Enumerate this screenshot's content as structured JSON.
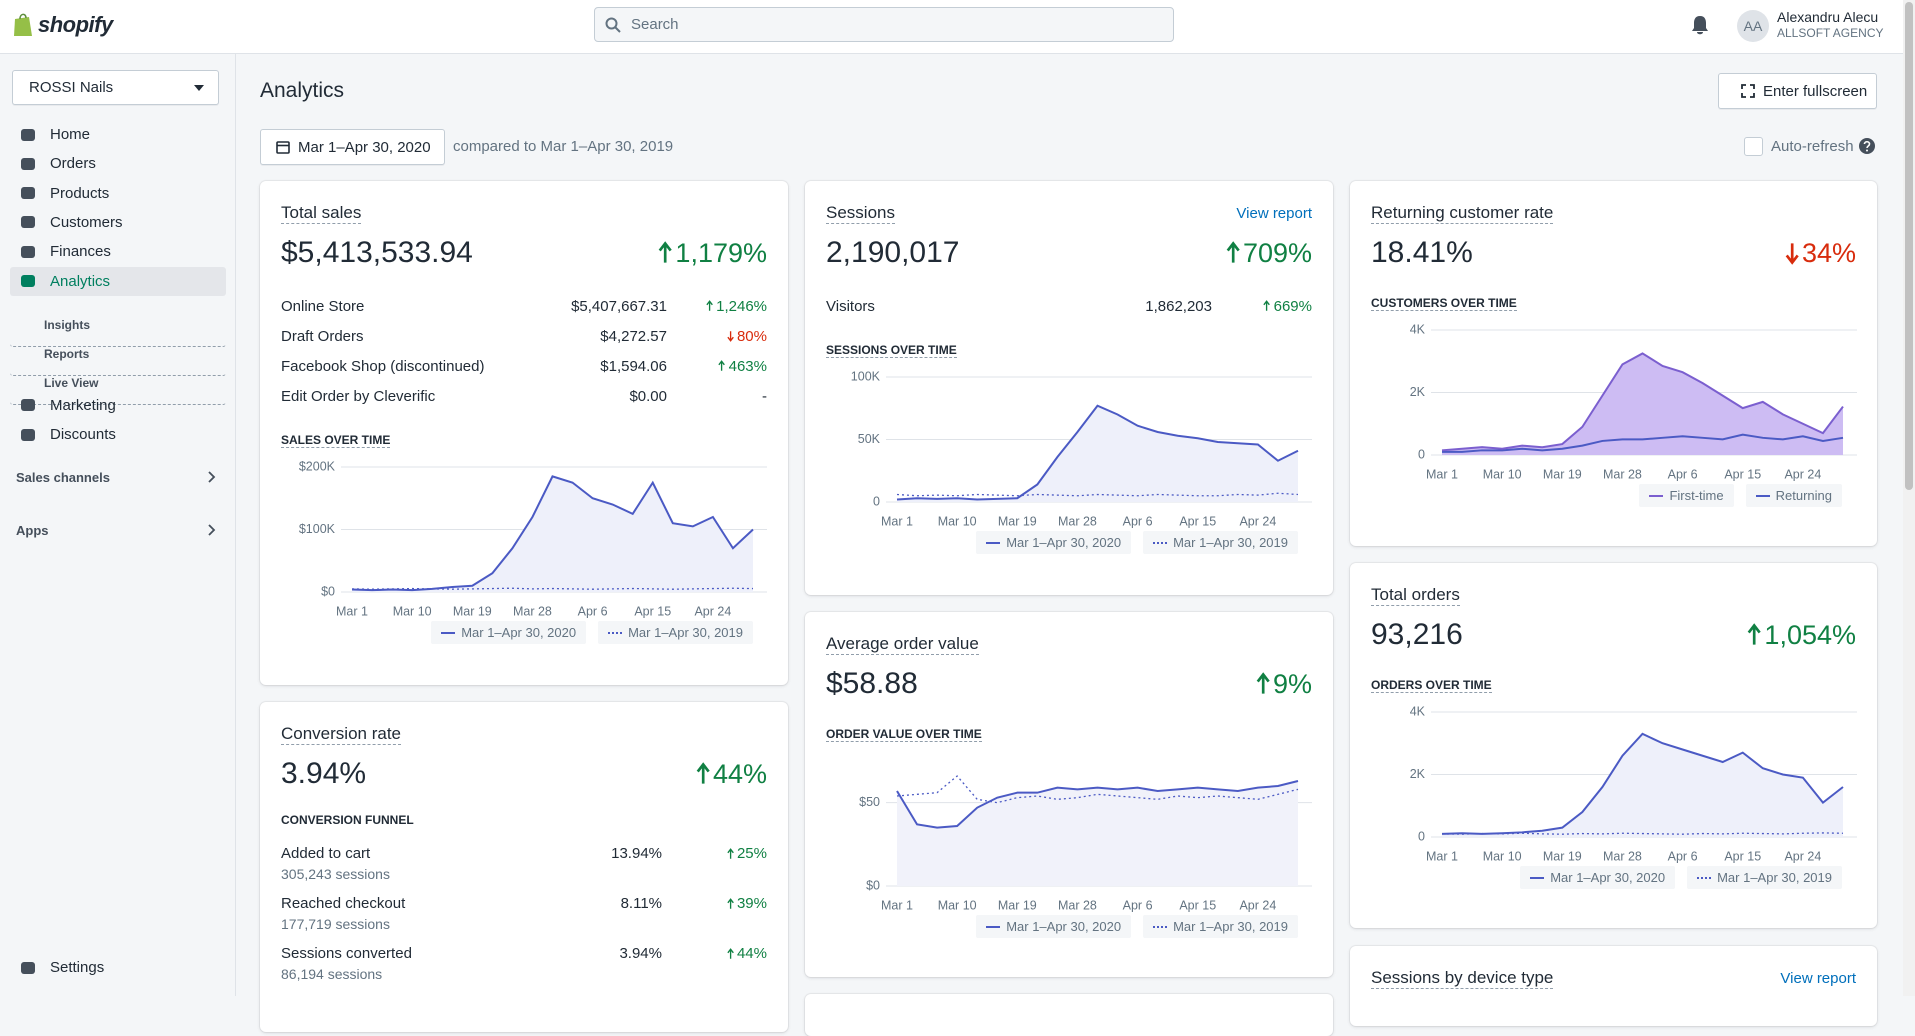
{
  "topbar": {
    "logo": "shopify",
    "search_placeholder": "Search",
    "user_initials": "AA",
    "user_name": "Alexandru Alecu",
    "user_org": "ALLSOFT AGENCY"
  },
  "sidebar": {
    "store": "ROSSI Nails",
    "nav": [
      "Home",
      "Orders",
      "Products",
      "Customers",
      "Finances",
      "Analytics"
    ],
    "analytics_sub": [
      "Insights",
      "Reports",
      "Live View"
    ],
    "nav2": [
      "Marketing",
      "Discounts"
    ],
    "sections": [
      "Sales channels",
      "Apps"
    ],
    "settings": "Settings"
  },
  "header": {
    "title": "Analytics",
    "fullscreen": "Enter fullscreen",
    "date_range": "Mar 1–Apr 30, 2020",
    "compared": "compared to Mar 1–Apr 30, 2019",
    "auto_refresh": "Auto-refresh"
  },
  "cards": {
    "total_sales": {
      "title": "Total sales",
      "value": "$5,413,533.94",
      "change": "1,179%",
      "dir": "up",
      "rows": [
        {
          "label": "Online Store",
          "value": "$5,407,667.31",
          "change": "1,246%",
          "dir": "up"
        },
        {
          "label": "Draft Orders",
          "value": "$4,272.57",
          "change": "80%",
          "dir": "down"
        },
        {
          "label": "Facebook Shop (discontinued)",
          "value": "$1,594.06",
          "change": "463%",
          "dir": "up"
        },
        {
          "label": "Edit Order by Cleverific",
          "value": "$0.00",
          "change": "-"
        }
      ],
      "chart": {
        "type": "line",
        "title": "SALES OVER TIME",
        "categories": [
          "Mar 1",
          null,
          null,
          "Mar 10",
          null,
          null,
          "Mar 19",
          null,
          null,
          "Mar 28",
          null,
          null,
          "Apr 6",
          null,
          null,
          "Apr 15",
          null,
          null,
          "Apr 24",
          null,
          null
        ],
        "series": [
          {
            "name": "Mar 1–Apr 30, 2020",
            "color": "#4b5ac4",
            "area_color": "#eef0fa",
            "values": [
              4000,
              3000,
              4000,
              3000,
              5000,
              8000,
              10000,
              30000,
              70000,
              120000,
              185000,
              175000,
              150000,
              140000,
              125000,
              175000,
              110000,
              105000,
              120000,
              70000,
              100000
            ]
          },
          {
            "name": "Mar 1–Apr 30, 2019",
            "color": "#4b5ac4",
            "dotted": true,
            "values": [
              5000,
              4500,
              5000,
              5500,
              5000,
              4500,
              5000,
              5500,
              6000,
              5000,
              5500,
              5000,
              4500,
              5000,
              5500,
              5000,
              4500,
              5000,
              5500,
              6000,
              5500
            ]
          }
        ],
        "ylim": [
          0,
          200000
        ],
        "yticks": [
          {
            "value": 0,
            "label": "$0"
          },
          {
            "value": 100000,
            "label": "$100K"
          },
          {
            "value": 200000,
            "label": "$200K"
          }
        ]
      }
    },
    "conversion": {
      "title": "Conversion rate",
      "value": "3.94%",
      "change": "44%",
      "dir": "up",
      "funnel_title": "CONVERSION FUNNEL",
      "funnel": [
        {
          "label": "Added to cart",
          "sub": "305,243 sessions",
          "value": "13.94%",
          "change": "25%",
          "dir": "up"
        },
        {
          "label": "Reached checkout",
          "sub": "177,719 sessions",
          "value": "8.11%",
          "change": "39%",
          "dir": "up"
        },
        {
          "label": "Sessions converted",
          "sub": "86,194 sessions",
          "value": "3.94%",
          "change": "44%",
          "dir": "up"
        }
      ]
    },
    "sessions": {
      "title": "Sessions",
      "link": "View report",
      "value": "2,190,017",
      "change": "709%",
      "dir": "up",
      "rows": [
        {
          "label": "Visitors",
          "value": "1,862,203",
          "change": "669%",
          "dir": "up"
        }
      ],
      "chart": {
        "type": "line",
        "title": "SESSIONS OVER TIME",
        "categories": [
          "Mar 1",
          null,
          null,
          "Mar 10",
          null,
          null,
          "Mar 19",
          null,
          null,
          "Mar 28",
          null,
          null,
          "Apr 6",
          null,
          null,
          "Apr 15",
          null,
          null,
          "Apr 24",
          null,
          null
        ],
        "series": [
          {
            "name": "Mar 1–Apr 30, 2020",
            "color": "#4b5ac4",
            "area_color": "#eef0fa",
            "values": [
              2000,
              3000,
              2500,
              3000,
              2000,
              2500,
              3000,
              14000,
              36000,
              56000,
              77000,
              70000,
              61000,
              56000,
              53000,
              51000,
              48000,
              47000,
              46000,
              33000,
              41000
            ]
          },
          {
            "name": "Mar 1–Apr 30, 2019",
            "color": "#4b5ac4",
            "dotted": true,
            "values": [
              6000,
              5000,
              5500,
              5000,
              6000,
              5500,
              5000,
              6000,
              5500,
              5000,
              6000,
              5500,
              5000,
              6000,
              5500,
              5000,
              5000,
              6000,
              5500,
              7000,
              6000
            ]
          }
        ],
        "ylim": [
          0,
          100000
        ],
        "yticks": [
          0,
          {
            "value": 50000,
            "label": "50K"
          },
          {
            "value": 100000,
            "label": "100K"
          }
        ]
      }
    },
    "aov": {
      "title": "Average order value",
      "value": "$58.88",
      "change": "9%",
      "dir": "up",
      "chart": {
        "type": "line",
        "title": "ORDER VALUE OVER TIME",
        "categories": [
          "Mar 1",
          null,
          null,
          "Mar 10",
          null,
          null,
          "Mar 19",
          null,
          null,
          "Mar 28",
          null,
          null,
          "Apr 6",
          null,
          null,
          "Apr 15",
          null,
          null,
          "Apr 24",
          null,
          null
        ],
        "series": [
          {
            "name": "Mar 1–Apr 30, 2020",
            "color": "#4b5ac4",
            "area_color": "#f1f2fa",
            "values": [
              57,
              37,
              35,
              36,
              47,
              53,
              56,
              56,
              59,
              58,
              59,
              58,
              59,
              57,
              58,
              59,
              58,
              57,
              59,
              60,
              63
            ]
          },
          {
            "name": "Mar 1–Apr 30, 2019",
            "color": "#4b5ac4",
            "dotted": true,
            "values": [
              54,
              55,
              56,
              66,
              52,
              50,
              53,
              54,
              52,
              53,
              55,
              54,
              53,
              52,
              54,
              53,
              54,
              53,
              52,
              55,
              58
            ]
          }
        ],
        "ylim": [
          0,
          75
        ],
        "yticks": [
          {
            "value": 0,
            "label": "$0"
          },
          {
            "value": 50,
            "label": "$50"
          }
        ]
      }
    },
    "returning": {
      "title": "Returning customer rate",
      "value": "18.41%",
      "change": "34%",
      "dir": "down",
      "chart": {
        "type": "line",
        "title": "CUSTOMERS OVER TIME",
        "categories": [
          "Mar 1",
          null,
          null,
          "Mar 10",
          null,
          null,
          "Mar 19",
          null,
          null,
          "Mar 28",
          null,
          null,
          "Apr 6",
          null,
          null,
          "Apr 15",
          null,
          null,
          "Apr 24",
          null,
          null
        ],
        "series": [
          {
            "name": "First-time",
            "color": "#7b5fcf",
            "area_color": "#cdbcf3",
            "values": [
              150,
              200,
              250,
              200,
              300,
              250,
              350,
              900,
              1900,
              2900,
              3250,
              2850,
              2650,
              2300,
              1900,
              1500,
              1700,
              1300,
              1000,
              700,
              1550
            ]
          },
          {
            "name": "Returning",
            "color": "#4b5ac4",
            "values": [
              100,
              100,
              150,
              150,
              200,
              150,
              200,
              300,
              450,
              500,
              500,
              550,
              600,
              550,
              500,
              650,
              550,
              500,
              600,
              450,
              550
            ]
          }
        ],
        "ylim": [
          0,
          4000
        ],
        "yticks": [
          0,
          {
            "value": 2000,
            "label": "2K"
          },
          {
            "value": 4000,
            "label": "4K"
          }
        ]
      }
    },
    "orders": {
      "title": "Total orders",
      "value": "93,216",
      "change": "1,054%",
      "dir": "up",
      "chart": {
        "type": "line",
        "title": "ORDERS OVER TIME",
        "categories": [
          "Mar 1",
          null,
          null,
          "Mar 10",
          null,
          null,
          "Mar 19",
          null,
          null,
          "Mar 28",
          null,
          null,
          "Apr 6",
          null,
          null,
          "Apr 15",
          null,
          null,
          "Apr 24",
          null,
          null
        ],
        "series": [
          {
            "name": "Mar 1–Apr 30, 2020",
            "color": "#4b5ac4",
            "area_color": "#eef0fa",
            "values": [
              100,
              120,
              100,
              120,
              150,
              200,
              300,
              800,
              1600,
              2600,
              3300,
              3000,
              2800,
              2600,
              2400,
              2700,
              2200,
              2000,
              1900,
              1100,
              1600
            ]
          },
          {
            "name": "Mar 1–Apr 30, 2019",
            "color": "#4b5ac4",
            "dotted": true,
            "values": [
              100,
              90,
              110,
              100,
              120,
              100,
              90,
              110,
              100,
              120,
              110,
              100,
              90,
              110,
              100,
              120,
              110,
              100,
              120,
              130,
              120
            ]
          }
        ],
        "ylim": [
          0,
          4000
        ],
        "yticks": [
          0,
          {
            "value": 2000,
            "label": "2K"
          },
          {
            "value": 4000,
            "label": "4K"
          }
        ]
      }
    },
    "device": {
      "title": "Sessions by device type",
      "link": "View report"
    }
  }
}
